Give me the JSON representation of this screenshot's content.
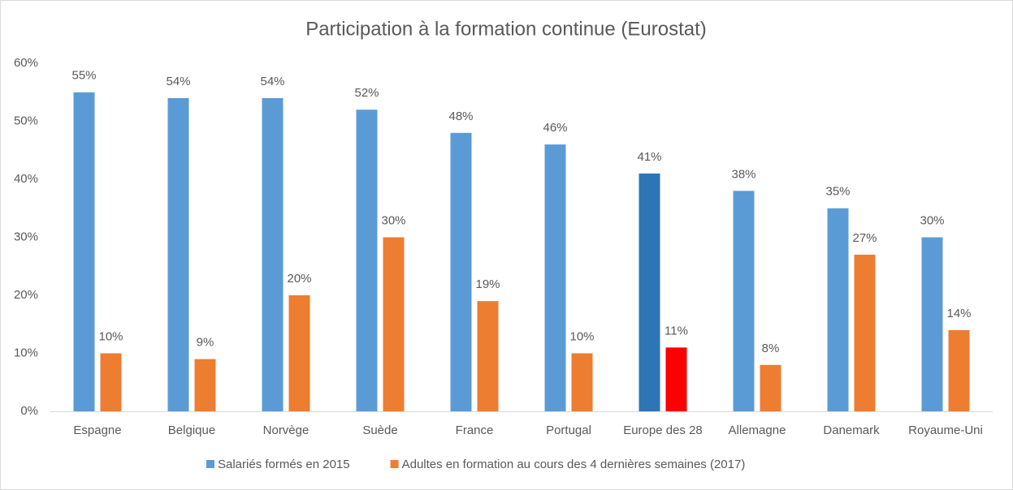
{
  "chart_data": {
    "type": "bar",
    "title": "Participation à la formation continue (Eurostat)",
    "categories": [
      "Espagne",
      "Belgique",
      "Norvège",
      "Suède",
      "France",
      "Portugal",
      "Europe des 28",
      "Allemagne",
      "Danemark",
      "Royaume-Uni"
    ],
    "series": [
      {
        "name": "Salariés formés en 2015",
        "color": "#5b9bd5",
        "values": [
          55,
          54,
          54,
          52,
          48,
          46,
          41,
          38,
          35,
          30
        ],
        "value_labels": [
          "55%",
          "54%",
          "54%",
          "52%",
          "48%",
          "46%",
          "41%",
          "38%",
          "35%",
          "30%"
        ],
        "point_colors": [
          null,
          null,
          null,
          null,
          null,
          null,
          "#2e75b6",
          null,
          null,
          null
        ]
      },
      {
        "name": "Adultes en formation au cours des 4 dernières semaines (2017)",
        "color": "#ed7d31",
        "values": [
          10,
          9,
          20,
          30,
          19,
          10,
          11,
          8,
          27,
          14
        ],
        "value_labels": [
          "10%",
          "9%",
          "20%",
          "30%",
          "19%",
          "10%",
          "11%",
          "8%",
          "27%",
          "14%"
        ],
        "point_colors": [
          null,
          null,
          null,
          null,
          null,
          null,
          "#ff0000",
          null,
          null,
          null
        ]
      }
    ],
    "ylim": [
      0,
      60
    ],
    "yticks": [
      {
        "value": 0,
        "label": "0%"
      },
      {
        "value": 10,
        "label": "10%"
      },
      {
        "value": 20,
        "label": "20%"
      },
      {
        "value": 30,
        "label": "30%"
      },
      {
        "value": 40,
        "label": "40%"
      },
      {
        "value": 50,
        "label": "50%"
      },
      {
        "value": 60,
        "label": "60%"
      }
    ],
    "grid": false,
    "legend": "bottom"
  }
}
